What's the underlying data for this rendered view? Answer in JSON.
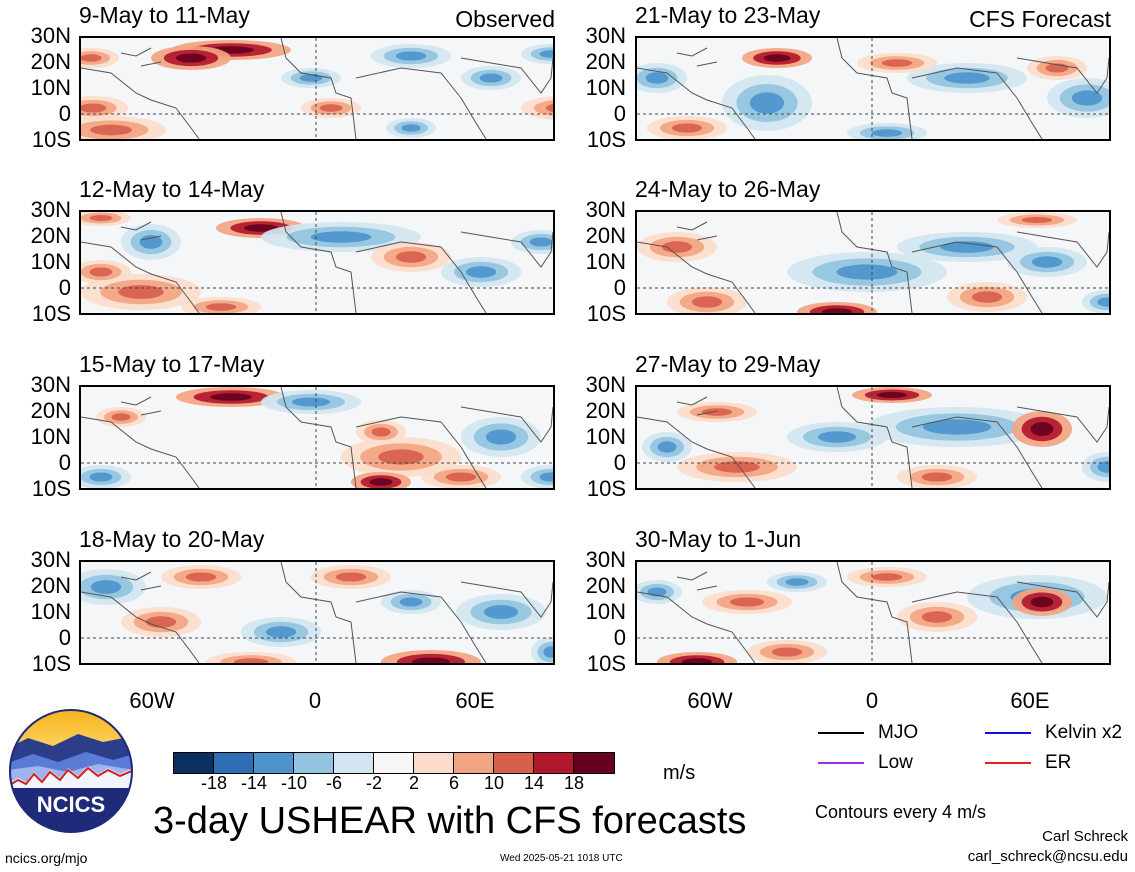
{
  "panels": [
    {
      "id": "p1",
      "period": "9-May to 11-May",
      "tag": "Observed",
      "col": 0,
      "row": 0,
      "blobs": [
        [
          "r",
          30,
          92,
          55,
          14
        ],
        [
          "r",
          12,
          70,
          35,
          12
        ],
        [
          "r",
          10,
          20,
          28,
          10
        ],
        [
          "d",
          150,
          12,
          60,
          10
        ],
        [
          "d",
          110,
          20,
          40,
          12
        ],
        [
          "b",
          330,
          18,
          40,
          12
        ],
        [
          "b",
          470,
          16,
          30,
          10
        ],
        [
          "b",
          410,
          40,
          30,
          12
        ],
        [
          "b",
          230,
          40,
          30,
          10
        ],
        [
          "r",
          480,
          70,
          40,
          12
        ],
        [
          "b",
          330,
          90,
          25,
          10
        ],
        [
          "r",
          250,
          70,
          30,
          10
        ]
      ]
    },
    {
      "id": "p2",
      "period": "12-May to 14-May",
      "tag": "",
      "col": 0,
      "row": 1,
      "blobs": [
        [
          "d",
          180,
          16,
          45,
          10
        ],
        [
          "b",
          70,
          30,
          30,
          18
        ],
        [
          "b",
          260,
          25,
          80,
          15
        ],
        [
          "r",
          20,
          6,
          30,
          8
        ],
        [
          "r",
          330,
          45,
          40,
          15
        ],
        [
          "r",
          60,
          80,
          60,
          18
        ],
        [
          "r",
          140,
          95,
          40,
          10
        ],
        [
          "b",
          400,
          60,
          40,
          15
        ],
        [
          "b",
          460,
          30,
          30,
          12
        ],
        [
          "r",
          20,
          60,
          30,
          12
        ]
      ]
    },
    {
      "id": "p3",
      "period": "15-May to 17-May",
      "tag": "",
      "col": 0,
      "row": 2,
      "blobs": [
        [
          "d",
          150,
          10,
          55,
          10
        ],
        [
          "r",
          320,
          70,
          60,
          20
        ],
        [
          "d",
          300,
          95,
          30,
          10
        ],
        [
          "b",
          420,
          50,
          40,
          20
        ],
        [
          "b",
          230,
          15,
          50,
          12
        ],
        [
          "r",
          40,
          30,
          25,
          10
        ],
        [
          "b",
          20,
          90,
          30,
          12
        ],
        [
          "r",
          300,
          45,
          25,
          12
        ],
        [
          "b",
          470,
          90,
          30,
          12
        ],
        [
          "r",
          380,
          90,
          40,
          12
        ]
      ]
    },
    {
      "id": "p4",
      "period": "18-May to 20-May",
      "tag": "",
      "col": 0,
      "row": 3,
      "blobs": [
        [
          "b",
          25,
          25,
          40,
          18
        ],
        [
          "r",
          120,
          15,
          40,
          12
        ],
        [
          "r",
          270,
          15,
          40,
          12
        ],
        [
          "d",
          350,
          100,
          50,
          12
        ],
        [
          "b",
          420,
          50,
          45,
          18
        ],
        [
          "b",
          330,
          40,
          30,
          12
        ],
        [
          "r",
          80,
          60,
          40,
          15
        ],
        [
          "b",
          200,
          70,
          40,
          15
        ],
        [
          "r",
          170,
          100,
          45,
          10
        ],
        [
          "b",
          470,
          90,
          20,
          15
        ]
      ]
    },
    {
      "id": "p5",
      "period": "21-May to 23-May",
      "tag": "CFS Forecast",
      "col": 1,
      "row": 0,
      "blobs": [
        [
          "d",
          140,
          20,
          35,
          10
        ],
        [
          "b",
          130,
          65,
          45,
          28
        ],
        [
          "b",
          330,
          40,
          60,
          15
        ],
        [
          "b",
          450,
          60,
          40,
          20
        ],
        [
          "r",
          420,
          30,
          30,
          12
        ],
        [
          "r",
          260,
          25,
          40,
          10
        ],
        [
          "r",
          50,
          90,
          40,
          12
        ],
        [
          "b",
          20,
          40,
          30,
          15
        ],
        [
          "b",
          250,
          95,
          40,
          10
        ]
      ]
    },
    {
      "id": "p6",
      "period": "24-May to 26-May",
      "tag": "",
      "col": 1,
      "row": 1,
      "blobs": [
        [
          "r",
          40,
          35,
          40,
          15
        ],
        [
          "b",
          230,
          60,
          80,
          20
        ],
        [
          "b",
          330,
          35,
          70,
          15
        ],
        [
          "d",
          200,
          100,
          40,
          10
        ],
        [
          "b",
          410,
          50,
          40,
          15
        ],
        [
          "r",
          70,
          90,
          40,
          15
        ],
        [
          "r",
          350,
          85,
          40,
          15
        ],
        [
          "b",
          470,
          90,
          25,
          12
        ],
        [
          "r",
          400,
          8,
          40,
          8
        ]
      ]
    },
    {
      "id": "p7",
      "period": "27-May to 29-May",
      "tag": "",
      "col": 1,
      "row": 2,
      "blobs": [
        [
          "r",
          80,
          25,
          40,
          10
        ],
        [
          "d",
          255,
          8,
          40,
          8
        ],
        [
          "b",
          320,
          40,
          90,
          20
        ],
        [
          "d",
          405,
          42,
          30,
          18
        ],
        [
          "b",
          200,
          50,
          50,
          15
        ],
        [
          "r",
          100,
          80,
          60,
          15
        ],
        [
          "b",
          30,
          60,
          25,
          15
        ],
        [
          "r",
          300,
          90,
          40,
          12
        ],
        [
          "b",
          470,
          80,
          25,
          15
        ]
      ]
    },
    {
      "id": "p8",
      "period": "30-May to 1-Jun",
      "tag": "",
      "col": 1,
      "row": 3,
      "blobs": [
        [
          "r",
          110,
          40,
          45,
          12
        ],
        [
          "b",
          160,
          20,
          30,
          10
        ],
        [
          "b",
          400,
          35,
          70,
          22
        ],
        [
          "d",
          405,
          40,
          30,
          14
        ],
        [
          "r",
          250,
          15,
          40,
          10
        ],
        [
          "r",
          300,
          55,
          40,
          15
        ],
        [
          "d",
          60,
          100,
          40,
          10
        ],
        [
          "b",
          20,
          30,
          25,
          12
        ],
        [
          "r",
          150,
          90,
          40,
          12
        ]
      ]
    }
  ],
  "y_labels": [
    "30N",
    "20N",
    "10N",
    "0",
    "10S"
  ],
  "x_labels": [
    "60W",
    "0",
    "60E"
  ],
  "colorbar": {
    "colors": [
      "#0b2f5e",
      "#2e6fb3",
      "#4d94cc",
      "#93c3df",
      "#d1e6f1",
      "#f7f7f7",
      "#fbdccb",
      "#f3a482",
      "#d7604d",
      "#b2182b",
      "#67001f"
    ],
    "ticks": [
      "-18",
      "-14",
      "-10",
      "-6",
      "-2",
      "2",
      "6",
      "10",
      "14",
      "18"
    ]
  },
  "units": "m/s",
  "title": "3-day USHEAR with CFS forecasts",
  "legend": [
    {
      "label": "MJO",
      "color": "#000000"
    },
    {
      "label": "Kelvin x2",
      "color": "#1010e0"
    },
    {
      "label": "Low",
      "color": "#a030e0"
    },
    {
      "label": "ER",
      "color": "#e02020"
    }
  ],
  "contours_note": "Contours every 4 m/s",
  "author_name": "Carl Schreck",
  "author_email": "carl_schreck@ncsu.edu",
  "site": "ncics.org/mjo",
  "timestamp": "Wed 2025-05-21 1018 UTC",
  "logo_text": "NCICS"
}
